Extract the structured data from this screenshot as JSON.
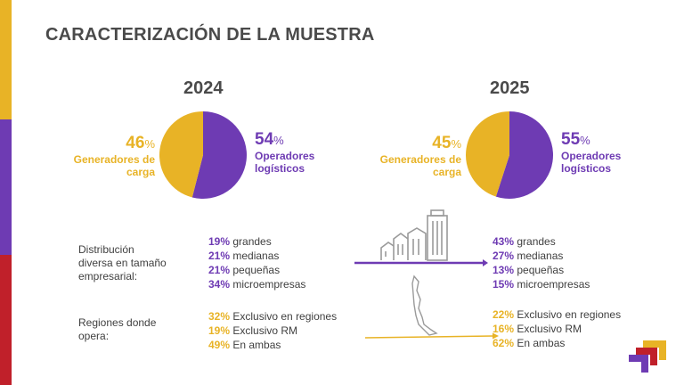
{
  "title": "CARACTERIZACIÓN DE LA MUESTRA",
  "colors": {
    "accent_yellow": "#e8b326",
    "accent_purple": "#6e3bb3",
    "accent_red": "#c0202a"
  },
  "chart_data": [
    {
      "type": "pie",
      "title": "2024",
      "categories": [
        "Generadores de carga",
        "Operadores logísticos"
      ],
      "values": [
        46,
        54
      ],
      "colors": [
        "#e8b326",
        "#6e3bb3"
      ]
    },
    {
      "type": "pie",
      "title": "2025",
      "categories": [
        "Generadores de carga",
        "Operadores logísticos"
      ],
      "values": [
        45,
        55
      ],
      "colors": [
        "#e8b326",
        "#6e3bb3"
      ]
    }
  ],
  "pies": {
    "y2024": {
      "year": "2024",
      "gen": {
        "num": "46",
        "pct": "%",
        "l1": "Generadores de",
        "l2": "carga"
      },
      "ope": {
        "num": "54",
        "pct": "%",
        "l1": "Operadores",
        "l2": "logísticos"
      }
    },
    "y2025": {
      "year": "2025",
      "gen": {
        "num": "45",
        "pct": "%",
        "l1": "Generadores de",
        "l2": "carga"
      },
      "ope": {
        "num": "55",
        "pct": "%",
        "l1": "Operadores",
        "l2": "logísticos"
      }
    }
  },
  "size": {
    "label": [
      "Distribución",
      "diversa en tamaño",
      "empresarial:"
    ],
    "y2024": [
      {
        "pct": "19%",
        "text": " grandes"
      },
      {
        "pct": "21%",
        "text": " medianas"
      },
      {
        "pct": "21%",
        "text": " pequeñas"
      },
      {
        "pct": "34%",
        "text": " microempresas"
      }
    ],
    "y2025": [
      {
        "pct": "43%",
        "text": " grandes"
      },
      {
        "pct": "27%",
        "text": " medianas"
      },
      {
        "pct": "13%",
        "text": " pequeñas"
      },
      {
        "pct": "15%",
        "text": " microempresas"
      }
    ]
  },
  "regions": {
    "label": [
      "Regiones donde",
      "opera:"
    ],
    "y2024": [
      {
        "pct": "32%",
        "text": " Exclusivo en regiones"
      },
      {
        "pct": "19%",
        "text": " Exclusivo RM"
      },
      {
        "pct": "49%",
        "text": " En ambas"
      }
    ],
    "y2025": [
      {
        "pct": "22%",
        "text": " Exclusivo en regiones"
      },
      {
        "pct": "16%",
        "text": " Exclusivo RM"
      },
      {
        "pct": "62%",
        "text": " En ambas"
      }
    ]
  },
  "icons": [
    "buildings-icon",
    "chile-map-icon",
    "logo-icon"
  ]
}
